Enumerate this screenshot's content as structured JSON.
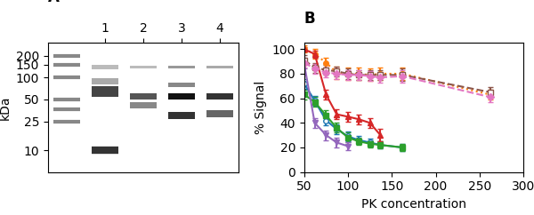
{
  "chart_data": [
    {
      "type": "blot",
      "title": "A",
      "ylabel": "kDa",
      "categories": [
        null,
        "1",
        "2",
        "3",
        "4"
      ],
      "log": "y",
      "ylim": [
        5,
        300
      ],
      "yticks": [
        200,
        150,
        100,
        50,
        25,
        10
      ],
      "ladder": {
        "color": "#888888",
        "kda": [
          200,
          150,
          100,
          50,
          37,
          25
        ]
      },
      "bands": [
        {
          "lane": "1",
          "kda": 65,
          "spread": 22,
          "color": "#444444"
        },
        {
          "lane": "1",
          "kda": 90,
          "spread": 18,
          "color": "#aaaaaa"
        },
        {
          "lane": "1",
          "kda": 140,
          "spread": 16,
          "color": "#bbbbbb"
        },
        {
          "lane": "2",
          "kda": 55,
          "spread": 10,
          "color": "#555555"
        },
        {
          "lane": "2",
          "kda": 42,
          "spread": 8,
          "color": "#888888"
        },
        {
          "lane": "2",
          "kda": 140,
          "spread": 12,
          "color": "#bbbbbb"
        },
        {
          "lane": "3",
          "kda": 55,
          "spread": 10,
          "color": "#111111"
        },
        {
          "lane": "3",
          "kda": 30,
          "spread": 7,
          "color": "#333333"
        },
        {
          "lane": "3",
          "kda": 80,
          "spread": 10,
          "color": "#888888"
        },
        {
          "lane": "3",
          "kda": 140,
          "spread": 12,
          "color": "#999999"
        },
        {
          "lane": "4",
          "kda": 55,
          "spread": 10,
          "color": "#333333"
        },
        {
          "lane": "4",
          "kda": 32,
          "spread": 7,
          "color": "#666666"
        },
        {
          "lane": "4",
          "kda": 140,
          "spread": 12,
          "color": "#aaaaaa"
        },
        {
          "lane": "1",
          "kda": 10,
          "color": "#333333"
        }
      ]
    },
    {
      "type": "line",
      "title": "B",
      "xlabel": "PK concentration",
      "ylabel": "% Signal",
      "xlim": [
        50,
        300
      ],
      "ylim": [
        0,
        105
      ],
      "xticks": [
        50,
        100,
        150,
        200,
        250,
        300
      ],
      "yticks": [
        0,
        20,
        40,
        60,
        80,
        100
      ],
      "series": [
        {
          "marker": "circle_open",
          "line_style": "solid",
          "x": [
            50,
            62,
            75,
            87,
            100,
            112,
            125,
            137,
            162
          ],
          "values": [
            72,
            58,
            42,
            35,
            29,
            26,
            24,
            22,
            20
          ],
          "yerr": [
            4,
            4,
            4,
            4,
            4,
            3,
            3,
            3,
            3
          ]
        },
        {
          "marker": "circle",
          "line_style": "dotted",
          "x": [
            50,
            62,
            75,
            87,
            100,
            112,
            125,
            137,
            162,
            262
          ],
          "values": [
            100,
            96,
            89,
            81,
            80,
            80,
            79,
            80,
            80,
            63
          ],
          "yerr": [
            3,
            4,
            4,
            5,
            5,
            5,
            5,
            5,
            5,
            4
          ]
        },
        {
          "marker": "square",
          "line_style": "solid",
          "x": [
            50,
            62,
            75,
            87,
            100,
            112,
            125,
            137,
            162
          ],
          "values": [
            63,
            57,
            46,
            36,
            28,
            25,
            23,
            22,
            20
          ],
          "yerr": [
            4,
            4,
            4,
            4,
            4,
            3,
            3,
            3,
            3
          ]
        },
        {
          "marker": "triangle_up",
          "line_style": "solid",
          "x": [
            50,
            62,
            75,
            87,
            100,
            112,
            125,
            137
          ],
          "values": [
            100,
            96,
            63,
            47,
            45,
            43,
            40,
            30
          ],
          "yerr": [
            2,
            3,
            4,
            4,
            4,
            4,
            4,
            5
          ]
        },
        {
          "marker": "triangle_down",
          "line_style": "solid",
          "x": [
            50,
            62,
            75,
            87,
            100
          ],
          "values": [
            88,
            40,
            30,
            24,
            21
          ],
          "yerr": [
            4,
            4,
            4,
            4,
            3
          ]
        },
        {
          "marker": "square_open",
          "line_style": "dashed",
          "x": [
            50,
            62,
            75,
            87,
            100,
            112,
            125,
            137,
            162,
            262
          ],
          "values": [
            91,
            85,
            83,
            82,
            80,
            79,
            79,
            79,
            79,
            65
          ],
          "yerr": [
            4,
            4,
            4,
            4,
            4,
            4,
            4,
            4,
            5,
            4
          ]
        },
        {
          "marker": "diamond",
          "line_style": "dashed",
          "x": [
            50,
            62,
            75,
            87,
            100,
            112,
            125,
            137,
            162,
            262
          ],
          "values": [
            89,
            84,
            81,
            80,
            79,
            79,
            78,
            77,
            78,
            61
          ],
          "yerr": [
            4,
            4,
            4,
            4,
            4,
            4,
            4,
            4,
            5,
            4
          ]
        }
      ]
    }
  ]
}
